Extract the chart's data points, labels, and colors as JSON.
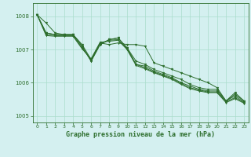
{
  "title": "Graphe pression niveau de la mer (hPa)",
  "bg_color": "#d4f0f0",
  "grid_color": "#aaddcc",
  "line_color": "#2d6e2d",
  "xlim": [
    -0.5,
    23.5
  ],
  "ylim": [
    1004.8,
    1008.4
  ],
  "yticks": [
    1005,
    1006,
    1007,
    1008
  ],
  "xticks": [
    0,
    1,
    2,
    3,
    4,
    5,
    6,
    7,
    8,
    9,
    10,
    11,
    12,
    13,
    14,
    15,
    16,
    17,
    18,
    19,
    20,
    21,
    22,
    23
  ],
  "series": [
    [
      1008.05,
      1007.8,
      1007.5,
      1007.45,
      1007.45,
      1007.15,
      1006.7,
      1007.2,
      1007.15,
      1007.2,
      1007.15,
      1007.15,
      1007.1,
      1006.6,
      1006.5,
      1006.4,
      1006.3,
      1006.2,
      1006.1,
      1006.0,
      1005.85,
      1005.45,
      1005.7,
      1005.45
    ],
    [
      1008.05,
      1007.5,
      1007.45,
      1007.45,
      1007.45,
      1007.1,
      1006.65,
      1007.15,
      1007.3,
      1007.35,
      1007.05,
      1006.65,
      1006.55,
      1006.4,
      1006.3,
      1006.2,
      1006.1,
      1005.95,
      1005.85,
      1005.8,
      1005.8,
      1005.45,
      1005.65,
      1005.45
    ],
    [
      1008.05,
      1007.5,
      1007.45,
      1007.45,
      1007.45,
      1007.1,
      1006.65,
      1007.15,
      1007.3,
      1007.35,
      1007.05,
      1006.55,
      1006.5,
      1006.35,
      1006.25,
      1006.15,
      1006.0,
      1005.9,
      1005.8,
      1005.75,
      1005.75,
      1005.45,
      1005.6,
      1005.42
    ],
    [
      1008.05,
      1007.45,
      1007.42,
      1007.42,
      1007.42,
      1007.05,
      1006.68,
      1007.18,
      1007.28,
      1007.3,
      1007.02,
      1006.55,
      1006.45,
      1006.32,
      1006.22,
      1006.12,
      1005.98,
      1005.85,
      1005.78,
      1005.72,
      1005.72,
      1005.42,
      1005.55,
      1005.4
    ],
    [
      1008.05,
      1007.42,
      1007.4,
      1007.4,
      1007.4,
      1007.02,
      1006.72,
      1007.22,
      1007.25,
      1007.28,
      1007.0,
      1006.52,
      1006.42,
      1006.3,
      1006.2,
      1006.1,
      1005.95,
      1005.82,
      1005.75,
      1005.7,
      1005.7,
      1005.4,
      1005.52,
      1005.38
    ]
  ],
  "figsize": [
    3.2,
    2.0
  ],
  "dpi": 100
}
